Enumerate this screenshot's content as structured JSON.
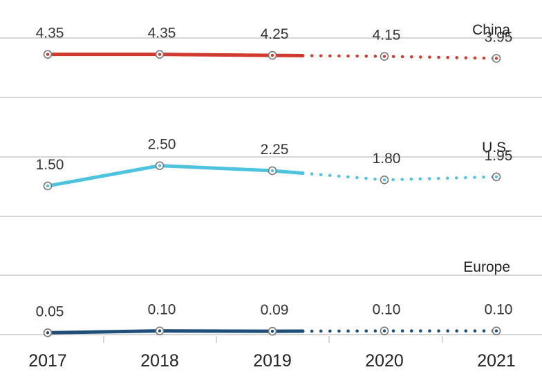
{
  "chart_data": {
    "type": "line",
    "x": [
      "2017",
      "2018",
      "2019",
      "2020",
      "2021"
    ],
    "forecast_from": "2020",
    "series": [
      {
        "name": "China",
        "color": "#d03a2f",
        "values": [
          4.35,
          4.35,
          4.25,
          4.15,
          3.95
        ],
        "labels": [
          "4.35",
          "4.35",
          "4.25",
          "4.15",
          "3.95"
        ]
      },
      {
        "name": "U.S.",
        "color": "#4ec3e0",
        "values": [
          1.5,
          2.5,
          2.25,
          1.8,
          1.95
        ],
        "labels": [
          "1.50",
          "2.50",
          "2.25",
          "1.80",
          "1.95"
        ]
      },
      {
        "name": "Europe",
        "color": "#1f4e79",
        "values": [
          0.05,
          0.1,
          0.09,
          0.1,
          0.1
        ],
        "labels": [
          "0.05",
          "0.10",
          "0.09",
          "0.10",
          "0.10"
        ]
      }
    ],
    "grid": true,
    "legend": "inline-right"
  }
}
